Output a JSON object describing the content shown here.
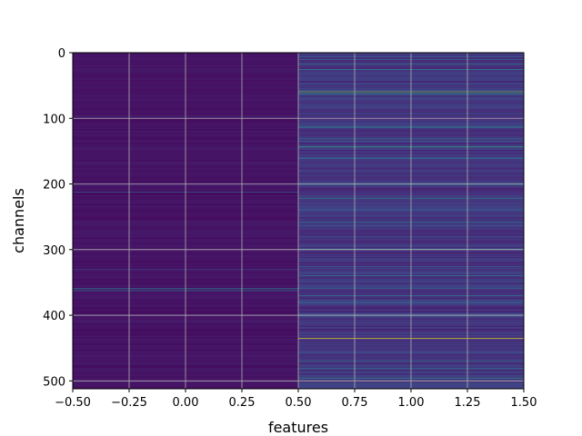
{
  "chart_data": {
    "type": "heatmap",
    "title": "",
    "xlabel": "features",
    "ylabel": "channels",
    "x_ticks": [
      "−0.50",
      "−0.25",
      "0.00",
      "0.25",
      "0.50",
      "0.75",
      "1.00",
      "1.25",
      "1.50"
    ],
    "y_ticks": [
      "0",
      "100",
      "200",
      "300",
      "400",
      "500"
    ],
    "xlim": [
      -0.5,
      1.5
    ],
    "ylim": [
      512,
      0
    ],
    "columns": 2,
    "rows": 512,
    "colormap": "viridis",
    "grid": true,
    "columns_summary": [
      {
        "x": 0,
        "background": 0.05,
        "highlights": [
          {
            "channel": 212,
            "value": 0.32
          },
          {
            "channel": 330,
            "value": 0.22
          },
          {
            "channel": 359,
            "value": 0.45
          },
          {
            "channel": 362,
            "value": 0.35
          }
        ]
      },
      {
        "x": 1,
        "background": 0.15,
        "highlights": [
          {
            "channel": 6,
            "value": 0.35
          },
          {
            "channel": 10,
            "value": 0.4
          },
          {
            "channel": 17,
            "value": 0.38
          },
          {
            "channel": 25,
            "value": 0.48
          },
          {
            "channel": 59,
            "value": 0.78
          },
          {
            "channel": 62,
            "value": 0.55
          },
          {
            "channel": 113,
            "value": 0.48
          },
          {
            "channel": 131,
            "value": 0.38
          },
          {
            "channel": 143,
            "value": 0.62
          },
          {
            "channel": 160,
            "value": 0.4
          },
          {
            "channel": 200,
            "value": 0.42
          },
          {
            "channel": 222,
            "value": 0.48
          },
          {
            "channel": 239,
            "value": 0.3
          },
          {
            "channel": 258,
            "value": 0.36
          },
          {
            "channel": 299,
            "value": 0.5
          },
          {
            "channel": 325,
            "value": 0.35
          },
          {
            "channel": 339,
            "value": 0.42
          },
          {
            "channel": 358,
            "value": 0.38
          },
          {
            "channel": 370,
            "value": 0.45
          },
          {
            "channel": 380,
            "value": 0.38
          },
          {
            "channel": 400,
            "value": 0.35
          },
          {
            "channel": 435,
            "value": 0.95
          },
          {
            "channel": 470,
            "value": 0.42
          },
          {
            "channel": 480,
            "value": 0.38
          },
          {
            "channel": 495,
            "value": 0.55
          },
          {
            "channel": 503,
            "value": 0.35
          }
        ]
      }
    ]
  }
}
